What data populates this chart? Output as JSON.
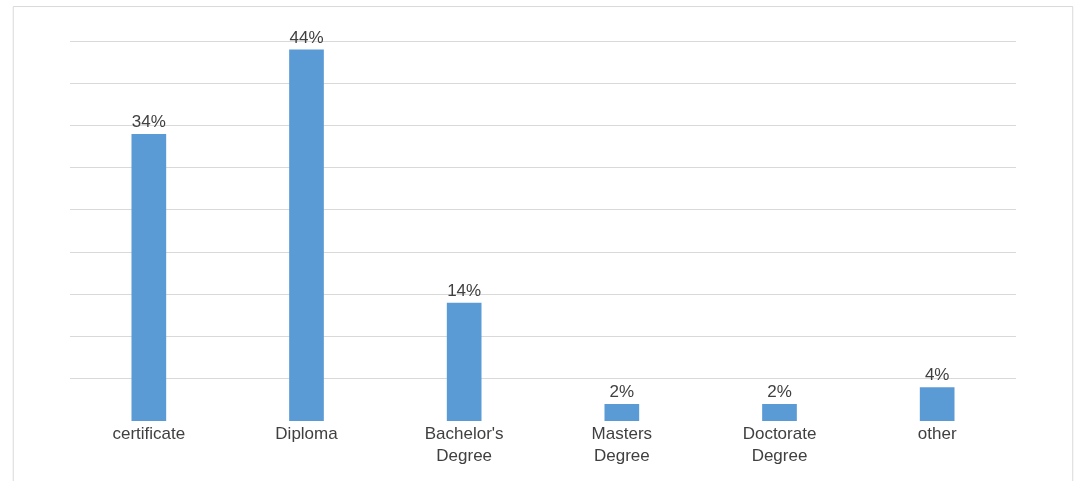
{
  "chart_data": {
    "type": "bar",
    "categories": [
      "certificate",
      "Diploma",
      "Bachelor's\nDegree",
      "Masters\nDegree",
      "Doctorate\nDegree",
      "other"
    ],
    "values": [
      34,
      44,
      14,
      2,
      2,
      4
    ],
    "value_labels": [
      "34%",
      "44%",
      "14%",
      "2%",
      "2%",
      "4%"
    ],
    "color": "#5b9bd5",
    "grid": "y",
    "tick_labels": "x"
  }
}
